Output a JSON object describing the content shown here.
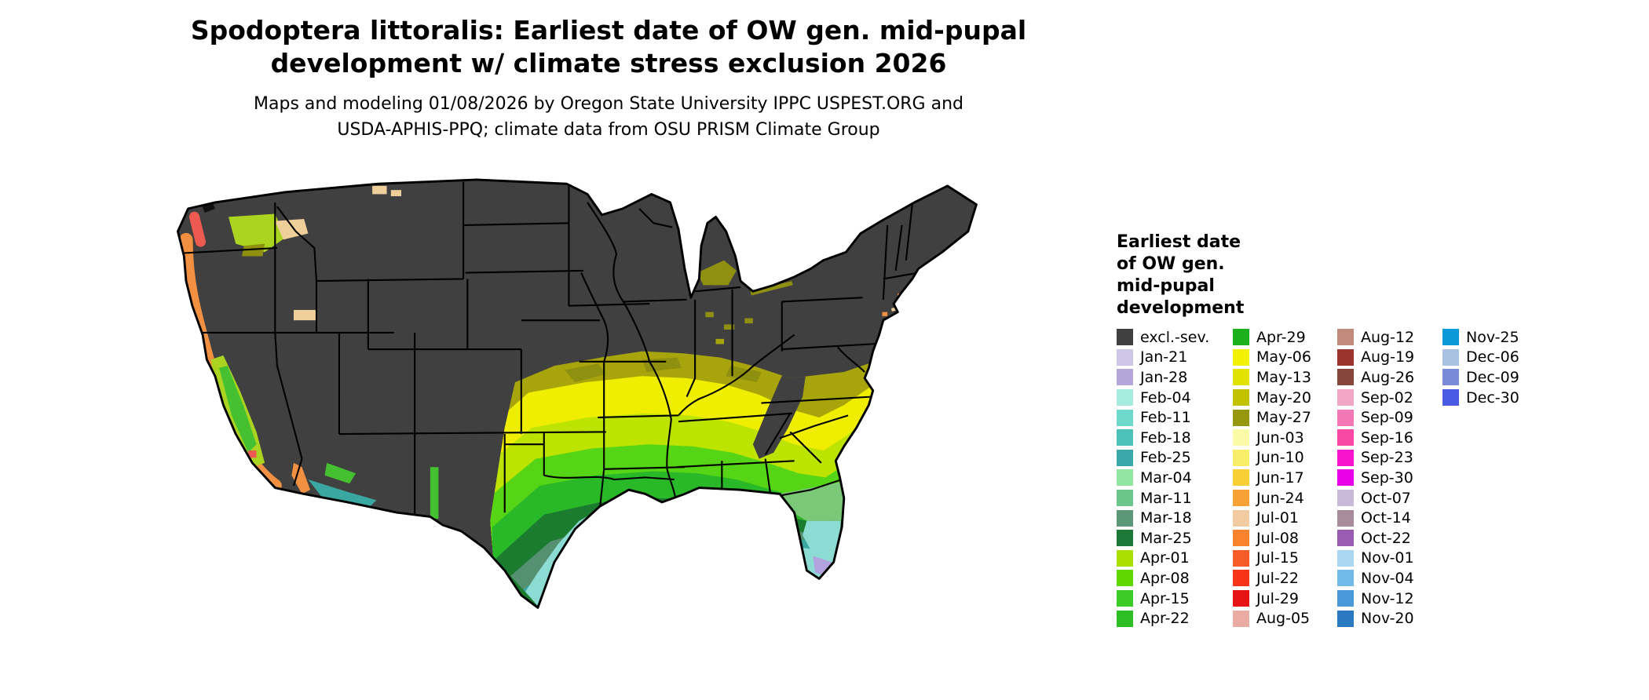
{
  "header": {
    "title_line1": "Spodoptera littoralis: Earliest date of OW gen. mid-pupal",
    "title_line2": "development w/ climate stress exclusion 2026",
    "subtitle_line1": "Maps and modeling 01/08/2026 by Oregon State University IPPC USPEST.ORG and",
    "subtitle_line2": "USDA-APHIS-PPQ; climate data from OSU PRISM Climate Group"
  },
  "legend": {
    "title_lines": [
      "Earliest date",
      "of OW gen.",
      "mid-pupal",
      "development"
    ],
    "columns": [
      [
        {
          "label": "excl.-sev.",
          "color": "#404040"
        },
        {
          "label": "Jan-21",
          "color": "#cdc6e6"
        },
        {
          "label": "Jan-28",
          "color": "#b4a6d8"
        },
        {
          "label": "Feb-04",
          "color": "#a6ecde"
        },
        {
          "label": "Feb-11",
          "color": "#6fd8cc"
        },
        {
          "label": "Feb-18",
          "color": "#4cc2ba"
        },
        {
          "label": "Feb-25",
          "color": "#38a8a8"
        },
        {
          "label": "Mar-04",
          "color": "#92e6a2"
        },
        {
          "label": "Mar-11",
          "color": "#6cc68c"
        },
        {
          "label": "Mar-18",
          "color": "#5c9878"
        },
        {
          "label": "Mar-25",
          "color": "#1e7838"
        },
        {
          "label": "Apr-01",
          "color": "#aadf00"
        },
        {
          "label": "Apr-08",
          "color": "#5fd800"
        },
        {
          "label": "Apr-15",
          "color": "#3ccc28"
        },
        {
          "label": "Apr-22",
          "color": "#2cbe24"
        }
      ],
      [
        {
          "label": "Apr-29",
          "color": "#1cb01c"
        },
        {
          "label": "May-06",
          "color": "#f2f200"
        },
        {
          "label": "May-13",
          "color": "#e2e200"
        },
        {
          "label": "May-20",
          "color": "#c2c200"
        },
        {
          "label": "May-27",
          "color": "#97970e"
        },
        {
          "label": "Jun-03",
          "color": "#fafaa8"
        },
        {
          "label": "Jun-10",
          "color": "#f8ee6a"
        },
        {
          "label": "Jun-17",
          "color": "#f8cf34"
        },
        {
          "label": "Jun-24",
          "color": "#f8a235"
        },
        {
          "label": "Jul-01",
          "color": "#f2cba2"
        },
        {
          "label": "Jul-08",
          "color": "#f8832c"
        },
        {
          "label": "Jul-15",
          "color": "#f85c28"
        },
        {
          "label": "Jul-22",
          "color": "#f83418"
        },
        {
          "label": "Jul-29",
          "color": "#e61414"
        },
        {
          "label": "Aug-05",
          "color": "#eaaca2"
        }
      ],
      [
        {
          "label": "Aug-12",
          "color": "#c28a7a"
        },
        {
          "label": "Aug-19",
          "color": "#9a342c"
        },
        {
          "label": "Aug-26",
          "color": "#87463c"
        },
        {
          "label": "Sep-02",
          "color": "#f2a6c6"
        },
        {
          "label": "Sep-09",
          "color": "#f277b4"
        },
        {
          "label": "Sep-16",
          "color": "#f748a4"
        },
        {
          "label": "Sep-23",
          "color": "#f714cc"
        },
        {
          "label": "Sep-30",
          "color": "#e800e8"
        },
        {
          "label": "Oct-07",
          "color": "#cabada"
        },
        {
          "label": "Oct-14",
          "color": "#a98c9c"
        },
        {
          "label": "Oct-22",
          "color": "#995cb2"
        },
        {
          "label": "Nov-01",
          "color": "#aad8f2"
        },
        {
          "label": "Nov-04",
          "color": "#72baea"
        },
        {
          "label": "Nov-12",
          "color": "#4a9ada"
        },
        {
          "label": "Nov-20",
          "color": "#2a7ac2"
        }
      ],
      [
        {
          "label": "Nov-25",
          "color": "#0a9ada"
        },
        {
          "label": "Dec-06",
          "color": "#aac2e2"
        },
        {
          "label": "Dec-09",
          "color": "#7a8ada"
        },
        {
          "label": "Dec-30",
          "color": "#4a5ae2"
        }
      ]
    ]
  },
  "map": {
    "colors": {
      "excluded": "#404040",
      "outline": "#000000",
      "olive": "#a8a40c",
      "dark_olive": "#8f8f10",
      "yellow": "#f0ee00",
      "yellow_green": "#bce400",
      "bright_green": "#55d515",
      "mid_green": "#28b828",
      "dark_green": "#1b7c30",
      "gray_green": "#559070",
      "teal": "#3aa8a0",
      "aqua": "#8cdcd4",
      "light_green": "#7ac878",
      "lavender": "#b2a2de",
      "coast_orange": "#f09040",
      "coast_red": "#ec5a50",
      "tan": "#eecf9a",
      "valley_yellow_green": "#aad420",
      "valley_green": "#44c030",
      "black_patch": "#101010"
    }
  }
}
